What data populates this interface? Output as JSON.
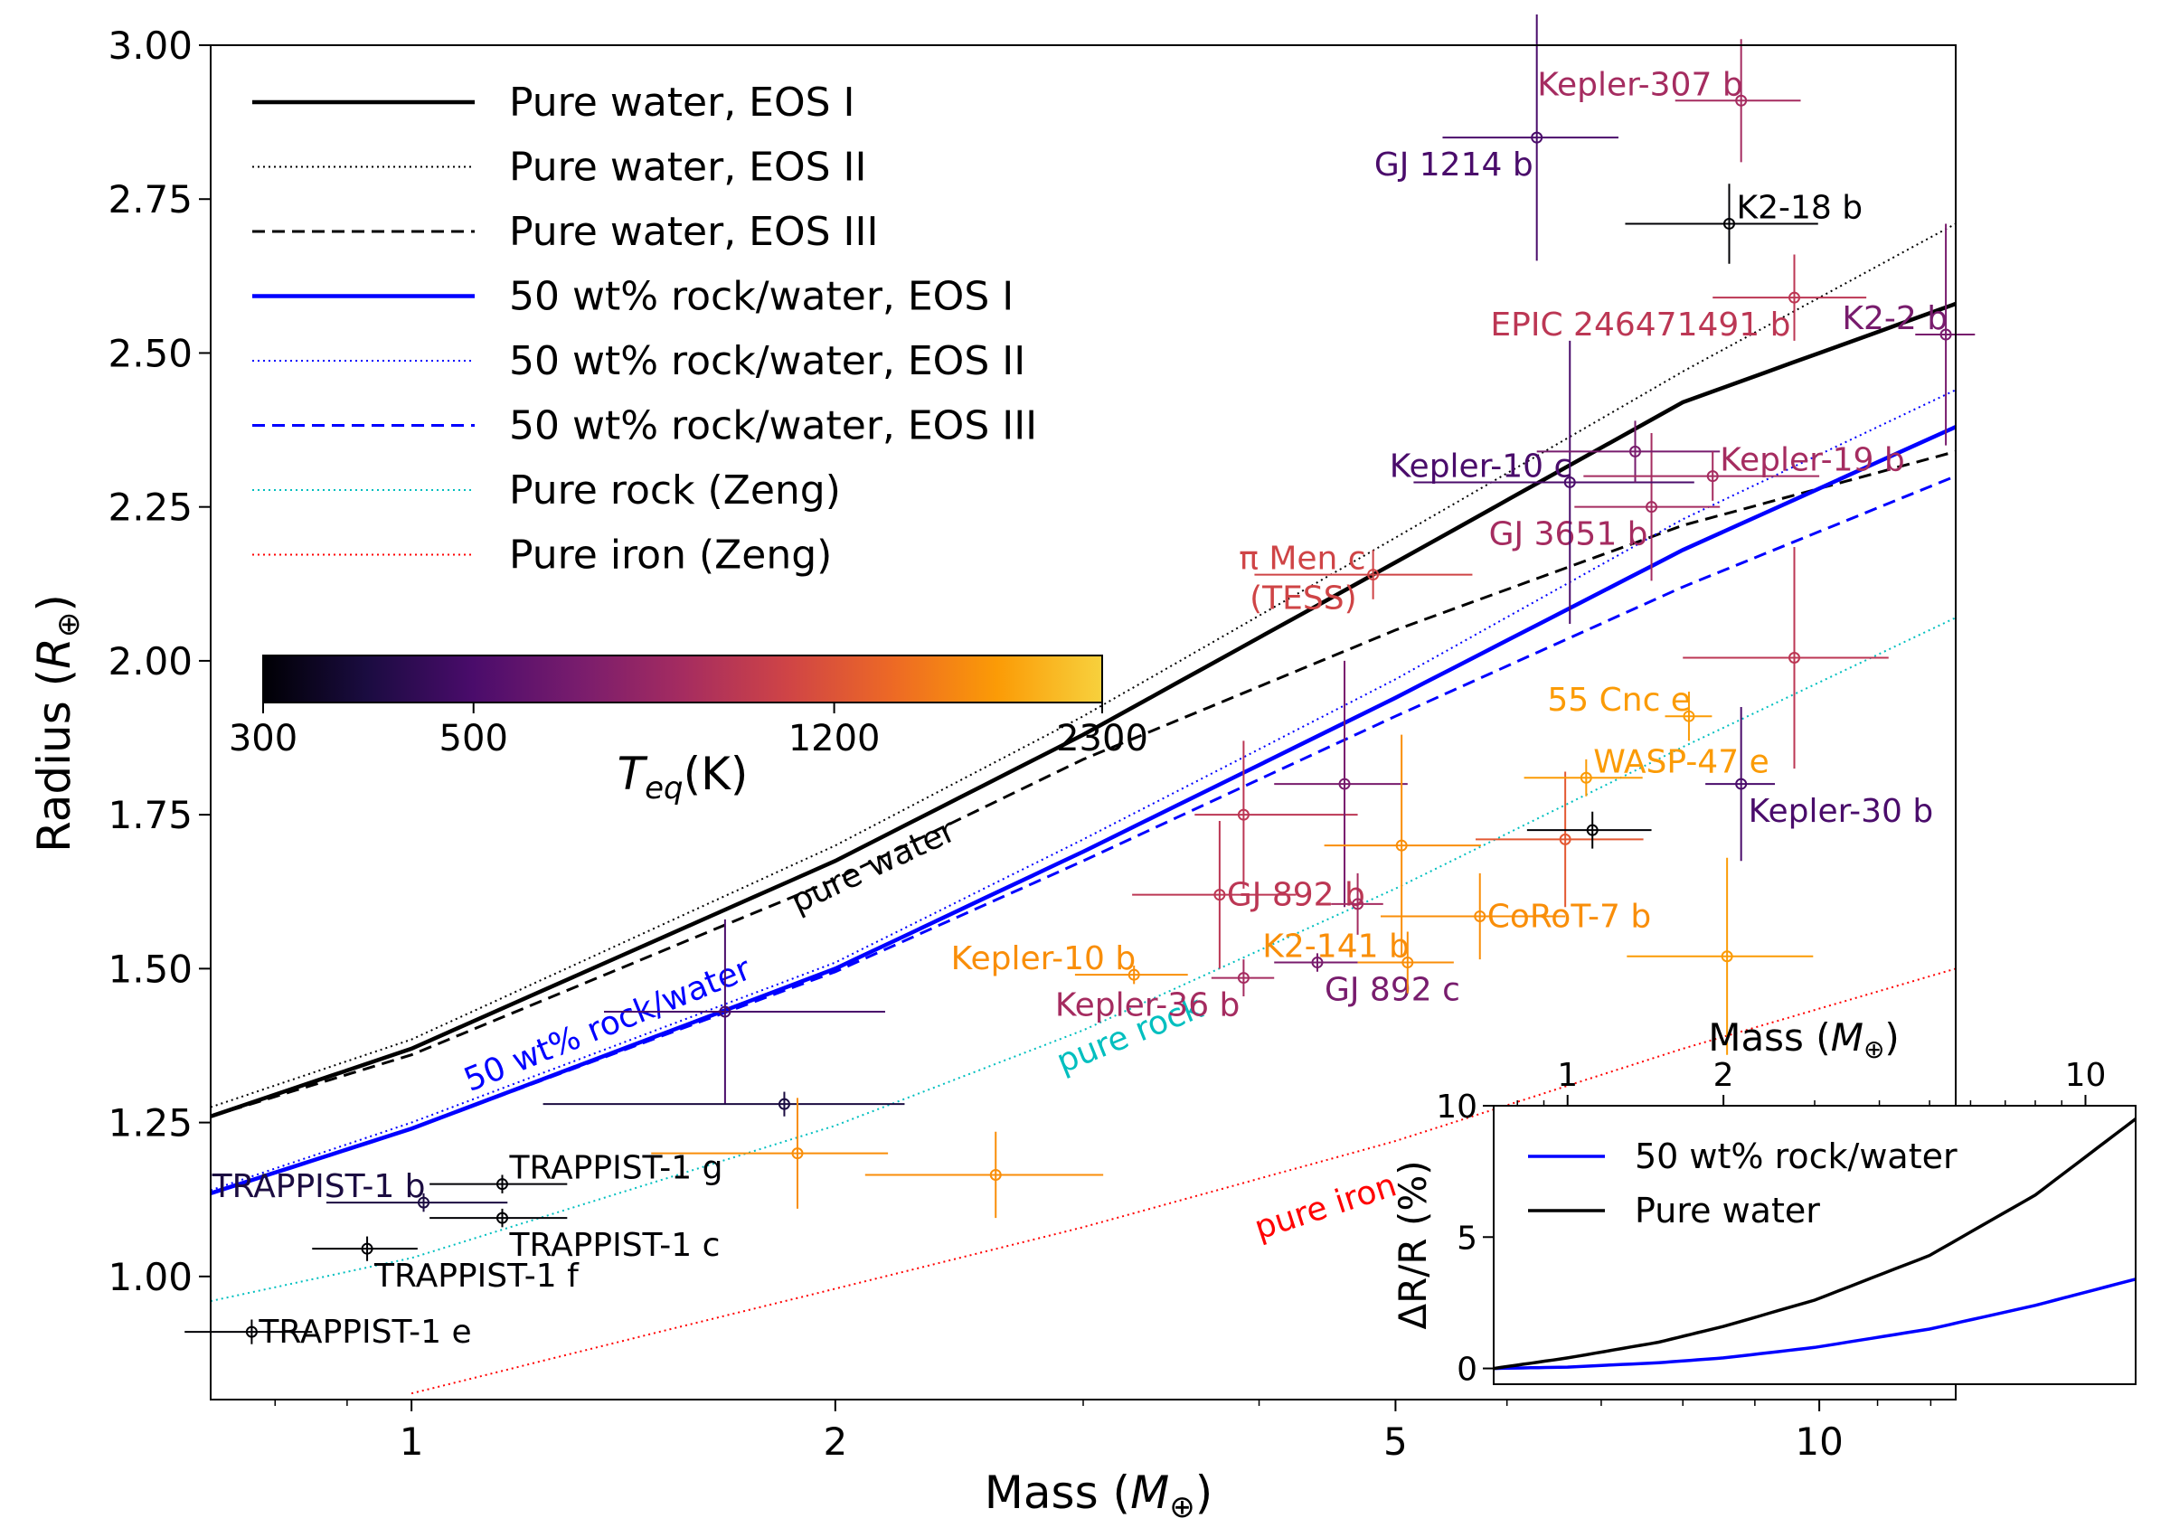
{
  "chart_data": [
    {
      "type": "scatter",
      "xlabel_main": "Mass (",
      "xlabel_sym": "M",
      "xlabel_sub": "⊕",
      "ylabel_main": "Radius (",
      "ylabel_sym": "R",
      "ylabel_sub": "⊕",
      "xscale": "log",
      "xlim": [
        0.72,
        12.5
      ],
      "ylim": [
        0.8,
        3.0
      ],
      "xticks": [
        1,
        2,
        5,
        10
      ],
      "xtick_labels": [
        "1",
        "2",
        "5",
        "10"
      ],
      "yticks": [
        1.0,
        1.25,
        1.5,
        1.75,
        2.0,
        2.25,
        2.5,
        2.75,
        3.0
      ],
      "ytick_labels": [
        "1.00",
        "1.25",
        "1.50",
        "1.75",
        "2.00",
        "2.25",
        "2.50",
        "2.75",
        "3.00"
      ],
      "legend_position": "top-left",
      "colorbar": {
        "label_sym": "T",
        "label_sub": "eq",
        "label_unit": "(K)",
        "tick_values": [
          300,
          500,
          1200,
          2300
        ],
        "tick_labels": [
          "300",
          "500",
          "1200",
          "2300"
        ],
        "colormap": "inferno",
        "stops": [
          "#000004",
          "#1b0c41",
          "#4a0c6b",
          "#781c6d",
          "#a52c60",
          "#cf4446",
          "#ed6925",
          "#fb9b06",
          "#f7d13d"
        ]
      },
      "series": [
        {
          "name": "Pure water, EOS I",
          "color": "#000000",
          "style": "solid",
          "width": 4.5,
          "x": [
            0.72,
            1,
            2,
            3,
            5,
            8,
            12.5
          ],
          "y": [
            1.26,
            1.37,
            1.675,
            1.88,
            2.16,
            2.42,
            2.58
          ]
        },
        {
          "name": "Pure water, EOS II",
          "color": "#000000",
          "style": "dotted",
          "width": 2,
          "x": [
            0.72,
            1,
            2,
            3,
            5,
            8,
            12.5
          ],
          "y": [
            1.275,
            1.385,
            1.7,
            1.91,
            2.2,
            2.47,
            2.71
          ]
        },
        {
          "name": "Pure water, EOS III",
          "color": "#000000",
          "style": "dashed",
          "width": 3,
          "x": [
            0.72,
            1,
            2,
            3,
            5,
            8,
            12.5
          ],
          "y": [
            1.26,
            1.36,
            1.645,
            1.84,
            2.05,
            2.22,
            2.34
          ]
        },
        {
          "name": "50 wt% rock/water, EOS I",
          "color": "#0000ff",
          "style": "solid",
          "width": 4.5,
          "x": [
            0.72,
            1,
            2,
            3,
            5,
            8,
            12.5
          ],
          "y": [
            1.135,
            1.24,
            1.5,
            1.69,
            1.94,
            2.18,
            2.38
          ]
        },
        {
          "name": "50 wt% rock/water, EOS II",
          "color": "#0000ff",
          "style": "dotted",
          "width": 2,
          "x": [
            0.72,
            1,
            2,
            3,
            5,
            8,
            12.5
          ],
          "y": [
            1.14,
            1.25,
            1.51,
            1.71,
            1.97,
            2.23,
            2.44
          ]
        },
        {
          "name": "50 wt% rock/water, EOS III",
          "color": "#0000ff",
          "style": "dashed",
          "width": 3,
          "x": [
            0.72,
            1,
            2,
            3,
            5,
            8,
            12.5
          ],
          "y": [
            1.135,
            1.24,
            1.495,
            1.675,
            1.91,
            2.12,
            2.3
          ]
        },
        {
          "name": "Pure rock (Zeng)",
          "color": "#00bfbf",
          "style": "dotted",
          "width": 2,
          "x": [
            0.72,
            1,
            2,
            3,
            5,
            8,
            12.5
          ],
          "y": [
            0.96,
            1.03,
            1.245,
            1.4,
            1.63,
            1.86,
            2.07
          ]
        },
        {
          "name": "Pure iron (Zeng)",
          "color": "#ff0000",
          "style": "dotted",
          "width": 2,
          "x": [
            1.0,
            1.5,
            2,
            3,
            5,
            8,
            12.5
          ],
          "y": [
            0.81,
            0.91,
            0.98,
            1.08,
            1.22,
            1.37,
            1.5
          ]
        }
      ],
      "curve_annotations": [
        {
          "text": "pure water",
          "x": 1.88,
          "y": 1.59,
          "angle": -25,
          "color": "#000000"
        },
        {
          "text": "50 wt% rock/water",
          "x": 1.1,
          "y": 1.3,
          "angle": -22,
          "color": "#0000ff"
        },
        {
          "text": "pure rock",
          "x": 2.9,
          "y": 1.33,
          "angle": -22,
          "color": "#00bfbf"
        },
        {
          "text": "pure iron",
          "x": 4.0,
          "y": 1.06,
          "angle": -18,
          "color": "#ff0000"
        }
      ],
      "planets": [
        {
          "name": "TRAPPIST-1 e",
          "mass": 0.77,
          "mass_err": [
            0.08,
            0.08
          ],
          "radius": 0.91,
          "radius_err": [
            0.02,
            0.02
          ],
          "color": "#000004",
          "label_pos": "right"
        },
        {
          "name": "TRAPPIST-1 f",
          "mass": 0.93,
          "mass_err": [
            0.08,
            0.08
          ],
          "radius": 1.045,
          "radius_err": [
            0.02,
            0.02
          ],
          "color": "#000004",
          "label_pos": "right-below"
        },
        {
          "name": "TRAPPIST-1 b",
          "mass": 1.02,
          "mass_err": [
            0.15,
            0.15
          ],
          "radius": 1.12,
          "radius_err": [
            0.015,
            0.015
          ],
          "color": "#1b0c41",
          "label_pos": "left-above"
        },
        {
          "name": "TRAPPIST-1 g",
          "mass": 1.16,
          "mass_err": [
            0.13,
            0.13
          ],
          "radius": 1.15,
          "radius_err": [
            0.015,
            0.015
          ],
          "color": "#000004",
          "label_pos": "right-above"
        },
        {
          "name": "TRAPPIST-1 c",
          "mass": 1.16,
          "mass_err": [
            0.13,
            0.13
          ],
          "radius": 1.095,
          "radius_err": [
            0.015,
            0.015
          ],
          "color": "#000004",
          "label_pos": "right-below"
        },
        {
          "name": "",
          "mass": 1.67,
          "mass_err": [
            0.3,
            0.5
          ],
          "radius": 1.43,
          "radius_err": [
            0.15,
            0.15
          ],
          "color": "#4a0c6b"
        },
        {
          "name": "",
          "mass": 1.84,
          "mass_err": [
            0.6,
            0.4
          ],
          "radius": 1.28,
          "radius_err": [
            0.02,
            0.02
          ],
          "color": "#1b0c41"
        },
        {
          "name": "",
          "mass": 1.88,
          "mass_err": [
            0.4,
            0.3
          ],
          "radius": 1.2,
          "radius_err": [
            0.09,
            0.09
          ],
          "color": "#f98e09"
        },
        {
          "name": "",
          "mass": 2.6,
          "mass_err": [
            0.5,
            0.5
          ],
          "radius": 1.165,
          "radius_err": [
            0.07,
            0.07
          ],
          "color": "#f98e09"
        },
        {
          "name": "Kepler-10 b",
          "mass": 3.26,
          "mass_err": [
            0.3,
            0.3
          ],
          "radius": 1.49,
          "radius_err": [
            0.015,
            0.015
          ],
          "color": "#f98e09",
          "label_pos": "left-above"
        },
        {
          "name": "Kepler-36 b",
          "mass": 3.9,
          "mass_err": [
            0.2,
            0.2
          ],
          "radius": 1.485,
          "radius_err": [
            0.03,
            0.03
          ],
          "color": "#a52c60",
          "label_pos": "left-below"
        },
        {
          "name": "",
          "mass": 3.9,
          "mass_err": [
            0.3,
            0.8
          ],
          "radius": 1.75,
          "radius_err": [
            0.12,
            0.12
          ],
          "color": "#bc3754"
        },
        {
          "name": "GJ 892 b",
          "mass": 3.75,
          "mass_err": [
            0.5,
            0.5
          ],
          "radius": 1.62,
          "radius_err": [
            0.12,
            0.12
          ],
          "color": "#bc3754",
          "label_pos": "right"
        },
        {
          "name": "GJ 892 c",
          "mass": 4.4,
          "mass_err": [
            0.3,
            0.3
          ],
          "radius": 1.51,
          "radius_err": [
            0.015,
            0.015
          ],
          "color": "#781c6d",
          "label_pos": "right-below"
        },
        {
          "name": "",
          "mass": 4.6,
          "mass_err": [
            0.5,
            0.5
          ],
          "radius": 1.8,
          "radius_err": [
            0.2,
            0.2
          ],
          "color": "#781c6d"
        },
        {
          "name": "",
          "mass": 4.7,
          "mass_err": [
            0.2,
            0.2
          ],
          "radius": 1.605,
          "radius_err": [
            0.05,
            0.05
          ],
          "color": "#a52c60"
        },
        {
          "name": "",
          "mass": 5.05,
          "mass_err": [
            0.6,
            0.7
          ],
          "radius": 1.7,
          "radius_err": [
            0.18,
            0.18
          ],
          "color": "#f98e09"
        },
        {
          "name": "K2-141 b",
          "mass": 5.1,
          "mass_err": [
            0.4,
            0.4
          ],
          "radius": 1.51,
          "radius_err": [
            0.05,
            0.05
          ],
          "color": "#f98e09",
          "label_pos": "left-above"
        },
        {
          "name": "π Men c",
          "name2": "(TESS)",
          "mass": 4.82,
          "mass_err": [
            0.85,
            0.85
          ],
          "radius": 2.14,
          "radius_err": [
            0.04,
            0.04
          ],
          "color": "#cf4446",
          "label_pos": "left-stacked"
        },
        {
          "name": "CoRoT-7 b",
          "mass": 5.74,
          "mass_err": [
            0.86,
            0.86
          ],
          "radius": 1.585,
          "radius_err": [
            0.07,
            0.07
          ],
          "color": "#f98e09",
          "label_pos": "right"
        },
        {
          "name": "",
          "mass": 6.6,
          "mass_err": [
            0.9,
            0.9
          ],
          "radius": 1.71,
          "radius_err": [
            0.11,
            0.11
          ],
          "color": "#e35933"
        },
        {
          "name": "",
          "mass": 6.9,
          "mass_err": [
            0.7,
            0.7
          ],
          "radius": 1.725,
          "radius_err": [
            0.03,
            0.03
          ],
          "color": "#000004"
        },
        {
          "name": "WASP-47 e",
          "mass": 6.83,
          "mass_err": [
            0.66,
            0.66
          ],
          "radius": 1.81,
          "radius_err": [
            0.03,
            0.03
          ],
          "color": "#fb9b06",
          "label_pos": "right-above"
        },
        {
          "name": "55 Cnc e",
          "mass": 8.08,
          "mass_err": [
            0.31,
            0.31
          ],
          "radius": 1.91,
          "radius_err": [
            0.04,
            0.04
          ],
          "color": "#fb9b06",
          "label_pos": "left-above"
        },
        {
          "name": "",
          "mass": 8.6,
          "mass_err": [
            1.3,
            1.3
          ],
          "radius": 1.52,
          "radius_err": [
            0.16,
            0.16
          ],
          "color": "#fb9b06"
        },
        {
          "name": "Kepler-30 b",
          "mass": 8.8,
          "mass_err": [
            0.5,
            0.5
          ],
          "radius": 1.8,
          "radius_err": [
            0.125,
            0.125
          ],
          "color": "#4a0c6b",
          "label_pos": "right-below"
        },
        {
          "name": "",
          "mass": 9.6,
          "mass_err": [
            1.6,
            1.6
          ],
          "radius": 2.005,
          "radius_err": [
            0.18,
            0.18
          ],
          "color": "#bc3754"
        },
        {
          "name": "GJ 3651 b",
          "mass": 7.6,
          "mass_err": [
            0.9,
            0.9
          ],
          "radius": 2.25,
          "radius_err": [
            0.12,
            0.12
          ],
          "color": "#a52c60",
          "label_pos": "left-below"
        },
        {
          "name": "Kepler-10 c",
          "mass": 6.65,
          "mass_err": [
            1.5,
            1.5
          ],
          "radius": 2.29,
          "radius_err": [
            0.23,
            0.23
          ],
          "color": "#4a0c6b",
          "label_pos": "left-above"
        },
        {
          "name": "",
          "mass": 7.4,
          "mass_err": [
            1.1,
            1.1
          ],
          "radius": 2.34,
          "radius_err": [
            0.05,
            0.05
          ],
          "color": "#781c6d"
        },
        {
          "name": "Kepler-19 b",
          "mass": 8.4,
          "mass_err": [
            1.6,
            1.6
          ],
          "radius": 2.3,
          "radius_err": [
            0.04,
            0.04
          ],
          "color": "#a52c60",
          "label_pos": "right-above"
        },
        {
          "name": "K2-18 b",
          "mass": 8.63,
          "mass_err": [
            1.35,
            1.35
          ],
          "radius": 2.71,
          "radius_err": [
            0.065,
            0.065
          ],
          "color": "#000004",
          "label_pos": "right-above"
        },
        {
          "name": "Kepler-307 b",
          "mass": 8.8,
          "mass_err": [
            0.9,
            0.9
          ],
          "radius": 2.91,
          "radius_err": [
            0.1,
            0.1
          ],
          "color": "#a52c60",
          "label_pos": "left-above"
        },
        {
          "name": "GJ 1214 b",
          "mass": 6.3,
          "mass_err": [
            0.9,
            0.9
          ],
          "radius": 2.85,
          "radius_err": [
            0.2,
            0.2
          ],
          "color": "#4a0c6b",
          "label_pos": "left-below"
        },
        {
          "name": "EPIC 246471491 b",
          "mass": 9.6,
          "mass_err": [
            1.2,
            1.2
          ],
          "radius": 2.59,
          "radius_err": [
            0.07,
            0.07
          ],
          "color": "#bc3754",
          "label_pos": "left-below"
        },
        {
          "name": "K2-2 b",
          "mass": 12.3,
          "mass_err": [
            0.6,
            0.6
          ],
          "radius": 2.53,
          "radius_err": [
            0.18,
            0.18
          ],
          "color": "#781c6d",
          "label_pos": "left-above"
        }
      ]
    },
    {
      "type": "line",
      "role": "inset",
      "xlabel_main": "Mass (",
      "xlabel_sym": "M",
      "xlabel_sub": "⊕",
      "ylabel": "ΔR/R (%)",
      "xscale": "log",
      "xlim": [
        0.72,
        12.5
      ],
      "ylim": [
        -0.6,
        10
      ],
      "xticks": [
        1,
        2,
        10
      ],
      "xtick_labels": [
        "1",
        "2",
        "10"
      ],
      "yticks": [
        0,
        5,
        10
      ],
      "ytick_labels": [
        "0",
        "5",
        "10"
      ],
      "legend_position": "top-left",
      "series": [
        {
          "name": "50 wt% rock/water",
          "color": "#0000ff",
          "x": [
            0.72,
            1,
            1.5,
            2,
            3,
            5,
            8,
            12.5
          ],
          "y": [
            0,
            0.05,
            0.22,
            0.4,
            0.8,
            1.5,
            2.4,
            3.4
          ]
        },
        {
          "name": "Pure water",
          "color": "#000000",
          "x": [
            0.72,
            1,
            1.5,
            2,
            3,
            5,
            8,
            12.5
          ],
          "y": [
            0,
            0.4,
            1.0,
            1.6,
            2.6,
            4.3,
            6.6,
            9.5
          ]
        }
      ]
    }
  ]
}
